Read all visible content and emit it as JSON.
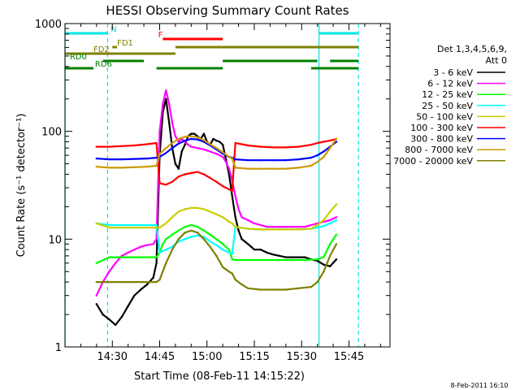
{
  "chart_data": {
    "type": "line",
    "title": "HESSI Observing Summary Count Rates",
    "xlabel": "Start Time (08-Feb-11 14:15:22)",
    "ylabel": "Count Rate (s⁻¹ detector⁻¹)",
    "yscale": "log",
    "ylim": [
      1,
      1000
    ],
    "xlim_minutes_after_14_15": [
      0,
      103
    ],
    "x_ticks": [
      {
        "label": "14:30",
        "min": 15
      },
      {
        "label": "14:45",
        "min": 30
      },
      {
        "label": "15:00",
        "min": 45
      },
      {
        "label": "15:15",
        "min": 60
      },
      {
        "label": "15:30",
        "min": 75
      },
      {
        "label": "15:45",
        "min": 90
      }
    ],
    "y_ticks": [
      "1",
      "10",
      "100",
      "1000"
    ],
    "grid": false,
    "legend": {
      "placement": "right",
      "header": [
        "Det 1,3,4,5,6,9,",
        "Att 0"
      ]
    },
    "series": [
      {
        "name": "3 - 6 keV",
        "color": "#000000",
        "x": [
          10,
          12,
          14,
          16,
          18,
          20,
          22,
          24,
          26,
          28,
          29,
          30,
          31,
          32,
          33,
          34,
          35,
          36,
          37,
          38,
          39,
          40,
          41,
          42,
          43,
          44,
          45,
          46,
          47,
          48,
          49,
          50,
          51,
          52,
          53,
          54,
          55,
          56,
          57,
          58,
          59,
          60,
          62,
          64,
          66,
          68,
          70,
          72,
          74,
          76,
          78,
          80,
          82,
          84,
          86
        ],
        "y": [
          2.5,
          2.0,
          1.8,
          1.6,
          1.9,
          2.4,
          3.0,
          3.4,
          3.8,
          4.4,
          6,
          60,
          150,
          200,
          120,
          70,
          50,
          45,
          65,
          75,
          90,
          95,
          95,
          90,
          85,
          95,
          80,
          75,
          85,
          82,
          80,
          75,
          55,
          40,
          25,
          16,
          12,
          10,
          9.5,
          9,
          8.5,
          8,
          8,
          7.5,
          7.2,
          7,
          6.8,
          6.8,
          6.8,
          6.8,
          6.5,
          6.3,
          5.8,
          5.6,
          6.5
        ]
      },
      {
        "name": "6 - 12 keV",
        "color": "#ff00ff",
        "x": [
          10,
          12,
          14,
          16,
          18,
          20,
          22,
          24,
          26,
          28,
          29,
          30,
          31,
          32,
          33,
          34,
          35,
          36,
          37,
          38,
          39,
          40,
          42,
          44,
          46,
          48,
          50,
          51,
          52,
          53,
          54,
          55,
          56,
          58,
          60,
          62,
          64,
          66,
          68,
          70,
          72,
          74,
          76,
          78,
          80,
          82,
          84,
          86
        ],
        "y": [
          3.0,
          4.0,
          5.0,
          6.0,
          7.0,
          7.5,
          8.0,
          8.5,
          8.8,
          9.0,
          10,
          100,
          180,
          240,
          180,
          120,
          90,
          80,
          85,
          80,
          75,
          72,
          70,
          68,
          65,
          62,
          58,
          52,
          45,
          35,
          25,
          19,
          16,
          15,
          14,
          13.5,
          13,
          13,
          13,
          13,
          13,
          13,
          13,
          13.5,
          14,
          14.5,
          15,
          16
        ]
      },
      {
        "name": "12 - 25 keV",
        "color": "#00ff00",
        "x": [
          10,
          14,
          18,
          22,
          26,
          29,
          30,
          31,
          32,
          34,
          36,
          38,
          40,
          42,
          44,
          46,
          48,
          50,
          52,
          53,
          54,
          56,
          60,
          64,
          68,
          72,
          76,
          80,
          82,
          84,
          86
        ],
        "y": [
          6.0,
          6.8,
          6.8,
          6.8,
          6.8,
          6.8,
          7.5,
          9,
          10,
          11,
          12,
          13,
          13.5,
          13,
          12,
          11,
          10,
          9,
          8,
          6.5,
          6.4,
          6.4,
          6.4,
          6.4,
          6.4,
          6.4,
          6.4,
          6.5,
          6.8,
          9,
          11
        ]
      },
      {
        "name": "25 - 50 keV",
        "color": "#00ffff",
        "x": [
          10,
          14,
          18,
          22,
          26,
          29,
          30,
          32,
          34,
          36,
          38,
          40,
          42,
          44,
          46,
          48,
          50,
          52,
          53,
          54,
          58,
          62,
          66,
          70,
          74,
          78,
          80,
          82,
          84,
          86
        ],
        "y": [
          14,
          13.5,
          13.5,
          13.5,
          13.5,
          13.5,
          7.5,
          8,
          8.5,
          9.5,
          10,
          10.5,
          10.8,
          10.5,
          9.5,
          8.8,
          8,
          7.5,
          7.3,
          13,
          12.5,
          12.3,
          12.3,
          12.3,
          12.3,
          12.5,
          12.8,
          13.2,
          14,
          15
        ]
      },
      {
        "name": "50 - 100 keV",
        "color": "#cccc00",
        "x": [
          10,
          14,
          18,
          22,
          26,
          29,
          30,
          32,
          34,
          36,
          38,
          40,
          42,
          44,
          46,
          48,
          50,
          52,
          53,
          54,
          58,
          62,
          66,
          70,
          74,
          78,
          80,
          82,
          84,
          86
        ],
        "y": [
          14,
          12.8,
          12.8,
          12.8,
          12.8,
          12.8,
          12.8,
          14,
          16,
          18,
          19,
          19.5,
          19.5,
          19,
          18,
          17,
          16,
          14.5,
          14,
          13,
          12.5,
          12.3,
          12.3,
          12.3,
          12.3,
          12.5,
          13.5,
          15,
          18,
          21
        ]
      },
      {
        "name": "100 - 300 keV",
        "color": "#ff0000",
        "x": [
          10,
          14,
          18,
          22,
          26,
          29,
          30,
          32,
          34,
          36,
          38,
          40,
          42,
          44,
          46,
          48,
          50,
          52,
          53,
          54,
          58,
          62,
          66,
          70,
          74,
          78,
          80,
          82,
          84,
          86
        ],
        "y": [
          72,
          72,
          73,
          74,
          76,
          78,
          33,
          32,
          34,
          38,
          40,
          41,
          42,
          40,
          37,
          34,
          31,
          29,
          28,
          78,
          74,
          72,
          71,
          71,
          72,
          75,
          78,
          80,
          82,
          85
        ]
      },
      {
        "name": "300 - 800 keV",
        "color": "#0000ff",
        "x": [
          10,
          14,
          18,
          22,
          26,
          29,
          30,
          32,
          34,
          36,
          38,
          40,
          42,
          44,
          46,
          48,
          50,
          52,
          53,
          54,
          58,
          62,
          66,
          70,
          74,
          78,
          80,
          82,
          84,
          86
        ],
        "y": [
          56,
          55,
          55,
          55.5,
          56,
          57,
          58,
          63,
          70,
          77,
          82,
          85,
          84,
          80,
          74,
          68,
          62,
          58,
          57,
          55,
          54,
          54,
          54,
          54,
          55,
          57,
          60,
          65,
          72,
          80
        ]
      },
      {
        "name": "800 - 7000 keV",
        "color": "#cc9900",
        "x": [
          10,
          14,
          18,
          22,
          26,
          29,
          30,
          32,
          34,
          36,
          38,
          40,
          42,
          44,
          46,
          48,
          50,
          52,
          53,
          54,
          58,
          62,
          66,
          70,
          74,
          78,
          80,
          82,
          84,
          86
        ],
        "y": [
          47,
          46,
          46,
          46.5,
          47,
          48,
          62,
          70,
          78,
          85,
          89,
          90,
          88,
          83,
          76,
          70,
          64,
          58,
          56,
          46,
          45,
          45,
          45,
          45,
          46,
          48,
          52,
          58,
          70,
          85
        ]
      },
      {
        "name": "7000 - 20000 keV",
        "color": "#808000",
        "x": [
          10,
          14,
          18,
          22,
          26,
          29,
          30,
          32,
          34,
          36,
          38,
          40,
          42,
          44,
          46,
          48,
          50,
          52,
          53,
          54,
          56,
          58,
          62,
          66,
          70,
          74,
          78,
          80,
          82,
          84,
          86
        ],
        "y": [
          4.0,
          4.0,
          4.0,
          4.0,
          4.0,
          4.0,
          4.2,
          6,
          8,
          10,
          11.5,
          12,
          11.5,
          10,
          8.5,
          7,
          5.5,
          5,
          4.8,
          4.2,
          3.8,
          3.5,
          3.4,
          3.4,
          3.4,
          3.5,
          3.6,
          4.0,
          5.0,
          7.0,
          9.0
        ]
      }
    ],
    "flags": [
      {
        "label": "N",
        "color": "#00e5e5",
        "label_color": "#00e5e5",
        "segments": [
          [
            0,
            13.5
          ],
          [
            80.5,
            93
          ]
        ]
      },
      {
        "label": "F",
        "color": "#ff0000",
        "label_color": "#ff0000",
        "segments": [
          [
            31,
            50
          ]
        ]
      },
      {
        "label": "FD1",
        "color": "#808000",
        "label_color": "#808000",
        "segments": [
          [
            15,
            16.5
          ],
          [
            35,
            93
          ]
        ]
      },
      {
        "label": "FD2",
        "color": "#808000",
        "label_color": "#808000",
        "segments": [
          [
            0,
            35
          ]
        ]
      },
      {
        "label": "RD0",
        "color": "#008000",
        "label_color": "#008000",
        "segments": [
          [
            12,
            25
          ],
          [
            50,
            80
          ],
          [
            84,
            93
          ]
        ]
      },
      {
        "label": "RD6",
        "color": "#008000",
        "label_color": "#008000",
        "segments": [
          [
            0,
            9
          ],
          [
            29,
            50
          ],
          [
            78,
            93
          ]
        ]
      }
    ],
    "vertical_lines": [
      {
        "min": 0,
        "color": "#00e5e5",
        "style": "solid"
      },
      {
        "min": 13.5,
        "color": "#00e5e5",
        "style": "dashed"
      },
      {
        "min": 80.5,
        "color": "#00e5e5",
        "style": "solid"
      },
      {
        "min": 93,
        "color": "#00e5e5",
        "style": "dashed"
      }
    ],
    "timestamp": "8-Feb-2011 16:10"
  }
}
